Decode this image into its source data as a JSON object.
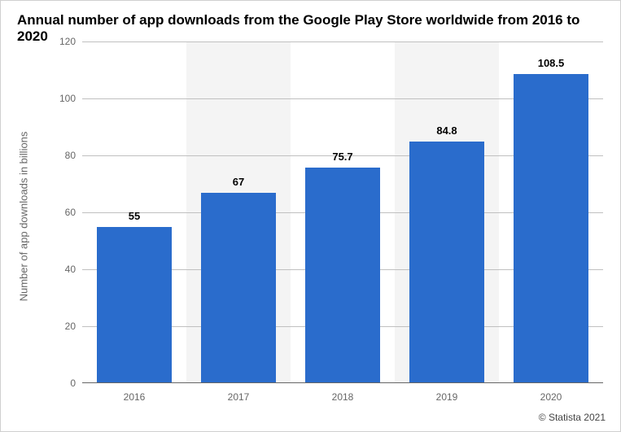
{
  "chart": {
    "type": "bar",
    "title": "Annual number of app downloads from the Google Play Store worldwide from 2016 to 2020",
    "title_fontsize": 17,
    "ylabel": "Number of app downloads in billions",
    "ylabel_fontsize": 13,
    "categories": [
      "2016",
      "2017",
      "2018",
      "2019",
      "2020"
    ],
    "values": [
      55,
      67,
      75.7,
      84.8,
      108.5
    ],
    "value_labels": [
      "55",
      "67",
      "75.7",
      "84.8",
      "108.5"
    ],
    "bar_color": "#2a6ccc",
    "bar_width": 0.72,
    "ylim": [
      0,
      120
    ],
    "ytick_step": 20,
    "yticks": [
      0,
      20,
      40,
      60,
      80,
      100,
      120
    ],
    "background_color": "#ffffff",
    "stripe_colors": [
      "#ffffff",
      "#f4f4f4"
    ],
    "grid_color": "#c0c0c0",
    "axis_color": "#666666",
    "tick_label_color": "#666666",
    "tick_fontsize": 12,
    "value_label_fontsize": 13,
    "value_label_color": "#000000"
  },
  "attribution": "© Statista 2021"
}
